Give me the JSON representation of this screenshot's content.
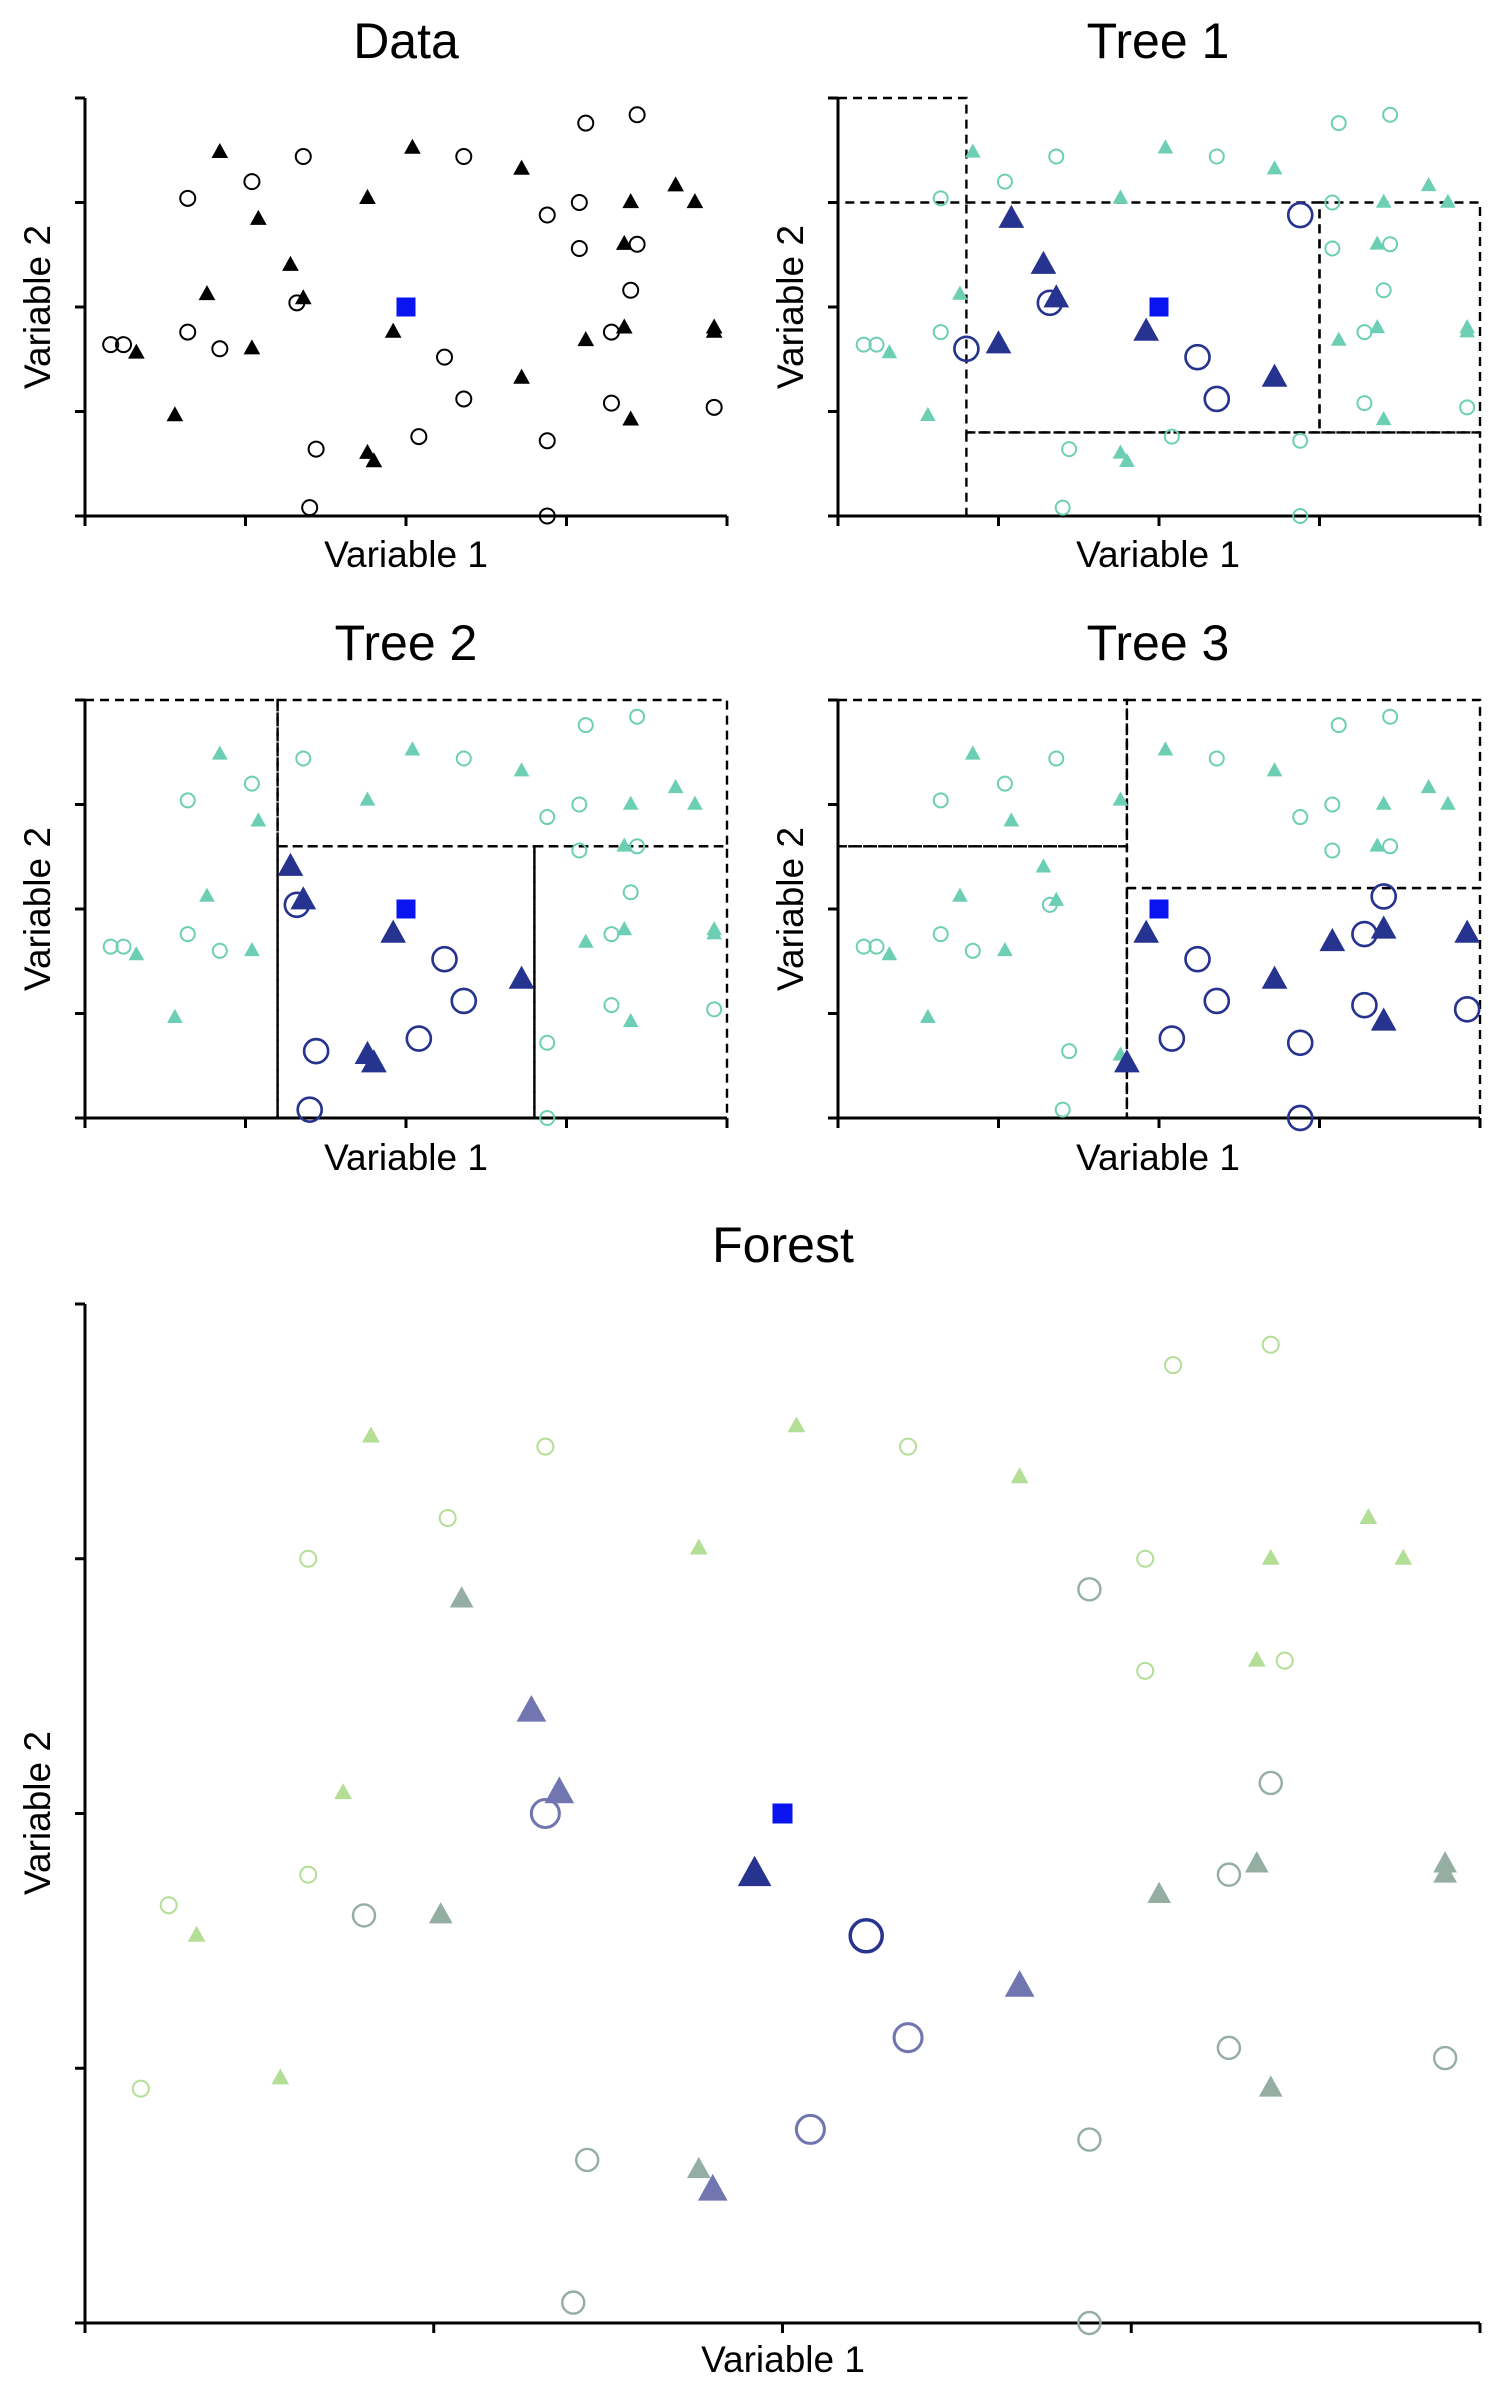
{
  "colors": {
    "query": "#0a14f0",
    "data_point": "#000000",
    "tree_background": "#6ccfb4",
    "neighbor": "#26338f",
    "forest_far": "#b2de96",
    "forest_mid": "#94aea4",
    "forest_near": "#7276b0",
    "forest_nearest": "#26338f"
  },
  "chart_data": [
    {
      "id": "data",
      "type": "scatter",
      "title": "Data",
      "xlabel": "Variable 1",
      "ylabel": "Variable 2",
      "xlim": [
        0,
        1
      ],
      "ylim": [
        0,
        1
      ],
      "x_ticks": [
        0,
        0.25,
        0.5,
        0.75,
        1
      ],
      "y_ticks": [
        0,
        0.25,
        0.5,
        0.75,
        1
      ],
      "query": {
        "x": 0.5,
        "y": 0.5,
        "shape": "square"
      },
      "points": [
        {
          "x": 0.04,
          "y": 0.41,
          "shape": "circle"
        },
        {
          "x": 0.06,
          "y": 0.41,
          "shape": "circle"
        },
        {
          "x": 0.08,
          "y": 0.39,
          "shape": "triangle"
        },
        {
          "x": 0.14,
          "y": 0.24,
          "shape": "triangle"
        },
        {
          "x": 0.16,
          "y": 0.44,
          "shape": "circle"
        },
        {
          "x": 0.16,
          "y": 0.76,
          "shape": "circle"
        },
        {
          "x": 0.19,
          "y": 0.53,
          "shape": "triangle"
        },
        {
          "x": 0.21,
          "y": 0.87,
          "shape": "triangle"
        },
        {
          "x": 0.21,
          "y": 0.4,
          "shape": "circle"
        },
        {
          "x": 0.26,
          "y": 0.4,
          "shape": "triangle"
        },
        {
          "x": 0.26,
          "y": 0.8,
          "shape": "circle"
        },
        {
          "x": 0.27,
          "y": 0.71,
          "shape": "triangle"
        },
        {
          "x": 0.32,
          "y": 0.6,
          "shape": "triangle"
        },
        {
          "x": 0.33,
          "y": 0.51,
          "shape": "circle"
        },
        {
          "x": 0.34,
          "y": 0.52,
          "shape": "triangle"
        },
        {
          "x": 0.34,
          "y": 0.86,
          "shape": "circle"
        },
        {
          "x": 0.35,
          "y": 0.02,
          "shape": "circle"
        },
        {
          "x": 0.36,
          "y": 0.16,
          "shape": "circle"
        },
        {
          "x": 0.44,
          "y": 0.15,
          "shape": "triangle"
        },
        {
          "x": 0.44,
          "y": 0.76,
          "shape": "triangle"
        },
        {
          "x": 0.45,
          "y": 0.13,
          "shape": "triangle"
        },
        {
          "x": 0.48,
          "y": 0.44,
          "shape": "triangle"
        },
        {
          "x": 0.51,
          "y": 0.88,
          "shape": "triangle"
        },
        {
          "x": 0.52,
          "y": 0.19,
          "shape": "circle"
        },
        {
          "x": 0.56,
          "y": 0.38,
          "shape": "circle"
        },
        {
          "x": 0.59,
          "y": 0.28,
          "shape": "circle"
        },
        {
          "x": 0.59,
          "y": 0.86,
          "shape": "circle"
        },
        {
          "x": 0.68,
          "y": 0.33,
          "shape": "triangle"
        },
        {
          "x": 0.68,
          "y": 0.83,
          "shape": "triangle"
        },
        {
          "x": 0.72,
          "y": 0.72,
          "shape": "circle"
        },
        {
          "x": 0.72,
          "y": 0.18,
          "shape": "circle"
        },
        {
          "x": 0.72,
          "y": 0.0,
          "shape": "circle"
        },
        {
          "x": 0.78,
          "y": 0.42,
          "shape": "triangle"
        },
        {
          "x": 0.78,
          "y": 0.94,
          "shape": "circle"
        },
        {
          "x": 0.77,
          "y": 0.75,
          "shape": "circle"
        },
        {
          "x": 0.77,
          "y": 0.64,
          "shape": "circle"
        },
        {
          "x": 0.82,
          "y": 0.27,
          "shape": "circle"
        },
        {
          "x": 0.82,
          "y": 0.44,
          "shape": "circle"
        },
        {
          "x": 0.84,
          "y": 0.45,
          "shape": "triangle"
        },
        {
          "x": 0.84,
          "y": 0.65,
          "shape": "triangle"
        },
        {
          "x": 0.85,
          "y": 0.23,
          "shape": "triangle"
        },
        {
          "x": 0.85,
          "y": 0.75,
          "shape": "triangle"
        },
        {
          "x": 0.85,
          "y": 0.54,
          "shape": "circle"
        },
        {
          "x": 0.86,
          "y": 0.65,
          "shape": "circle"
        },
        {
          "x": 0.86,
          "y": 0.96,
          "shape": "circle"
        },
        {
          "x": 0.92,
          "y": 0.79,
          "shape": "triangle"
        },
        {
          "x": 0.95,
          "y": 0.75,
          "shape": "triangle"
        },
        {
          "x": 0.98,
          "y": 0.45,
          "shape": "triangle"
        },
        {
          "x": 0.98,
          "y": 0.44,
          "shape": "triangle"
        },
        {
          "x": 0.98,
          "y": 0.26,
          "shape": "circle"
        }
      ]
    },
    {
      "id": "tree1",
      "type": "scatter",
      "title": "Tree 1",
      "xlabel": "Variable 1",
      "ylabel": "Variable 2",
      "xlim": [
        0,
        1
      ],
      "ylim": [
        0,
        1
      ],
      "x_ticks": [
        0,
        0.25,
        0.5,
        0.75,
        1
      ],
      "y_ticks": [
        0,
        0.25,
        0.5,
        0.75,
        1
      ],
      "query": {
        "x": 0.5,
        "y": 0.5,
        "shape": "square"
      },
      "partitions": [
        [
          0,
          0.75,
          0.2,
          1
        ],
        [
          0.2,
          0.2,
          0.75,
          0.75
        ],
        [
          0.75,
          0.2,
          1,
          0.75
        ],
        [
          0.2,
          0,
          1,
          0.2
        ]
      ],
      "highlight_region": [
        0.2,
        0.2,
        0.75,
        0.75
      ],
      "neighbors": [
        {
          "x": 0.2,
          "y": 0.4,
          "shape": "circle"
        },
        {
          "x": 0.25,
          "y": 0.41,
          "shape": "triangle"
        },
        {
          "x": 0.27,
          "y": 0.71,
          "shape": "triangle"
        },
        {
          "x": 0.32,
          "y": 0.6,
          "shape": "triangle"
        },
        {
          "x": 0.33,
          "y": 0.51,
          "shape": "circle"
        },
        {
          "x": 0.34,
          "y": 0.52,
          "shape": "triangle"
        },
        {
          "x": 0.48,
          "y": 0.44,
          "shape": "triangle"
        },
        {
          "x": 0.56,
          "y": 0.38,
          "shape": "circle"
        },
        {
          "x": 0.59,
          "y": 0.28,
          "shape": "circle"
        },
        {
          "x": 0.68,
          "y": 0.33,
          "shape": "triangle"
        },
        {
          "x": 0.72,
          "y": 0.72,
          "shape": "circle"
        }
      ]
    },
    {
      "id": "tree2",
      "type": "scatter",
      "title": "Tree 2",
      "xlabel": "Variable 1",
      "ylabel": "Variable 2",
      "xlim": [
        0,
        1
      ],
      "ylim": [
        0,
        1
      ],
      "x_ticks": [
        0,
        0.25,
        0.5,
        0.75,
        1
      ],
      "y_ticks": [
        0,
        0.25,
        0.5,
        0.75,
        1
      ],
      "query": {
        "x": 0.5,
        "y": 0.5,
        "shape": "square"
      },
      "partitions": [
        [
          0,
          0,
          0.3,
          1
        ],
        [
          0.3,
          0.65,
          1,
          1
        ],
        [
          0.3,
          0,
          0.7,
          0.65
        ],
        [
          0.7,
          0,
          1,
          0.65
        ]
      ],
      "highlight_region": [
        0.3,
        0,
        0.7,
        0.65
      ],
      "neighbors": [
        {
          "x": 0.32,
          "y": 0.6,
          "shape": "triangle"
        },
        {
          "x": 0.33,
          "y": 0.51,
          "shape": "circle"
        },
        {
          "x": 0.34,
          "y": 0.52,
          "shape": "triangle"
        },
        {
          "x": 0.35,
          "y": 0.02,
          "shape": "circle"
        },
        {
          "x": 0.36,
          "y": 0.16,
          "shape": "circle"
        },
        {
          "x": 0.44,
          "y": 0.15,
          "shape": "triangle"
        },
        {
          "x": 0.45,
          "y": 0.13,
          "shape": "triangle"
        },
        {
          "x": 0.48,
          "y": 0.44,
          "shape": "triangle"
        },
        {
          "x": 0.52,
          "y": 0.19,
          "shape": "circle"
        },
        {
          "x": 0.56,
          "y": 0.38,
          "shape": "circle"
        },
        {
          "x": 0.59,
          "y": 0.28,
          "shape": "circle"
        },
        {
          "x": 0.68,
          "y": 0.33,
          "shape": "triangle"
        }
      ]
    },
    {
      "id": "tree3",
      "type": "scatter",
      "title": "Tree 3",
      "xlabel": "Variable 1",
      "ylabel": "Variable 2",
      "xlim": [
        0,
        1
      ],
      "ylim": [
        0,
        1
      ],
      "x_ticks": [
        0,
        0.25,
        0.5,
        0.75,
        1
      ],
      "y_ticks": [
        0,
        0.25,
        0.5,
        0.75,
        1
      ],
      "query": {
        "x": 0.5,
        "y": 0.5,
        "shape": "square"
      },
      "partitions": [
        [
          0,
          0.65,
          0.45,
          1
        ],
        [
          0,
          0,
          0.45,
          0.65
        ],
        [
          0.45,
          0.55,
          1,
          1
        ],
        [
          0.45,
          0,
          1,
          0.55
        ]
      ],
      "highlight_region": [
        0.45,
        0,
        1,
        0.55
      ],
      "neighbors": [
        {
          "x": 0.45,
          "y": 0.13,
          "shape": "triangle"
        },
        {
          "x": 0.48,
          "y": 0.44,
          "shape": "triangle"
        },
        {
          "x": 0.52,
          "y": 0.19,
          "shape": "circle"
        },
        {
          "x": 0.56,
          "y": 0.38,
          "shape": "circle"
        },
        {
          "x": 0.59,
          "y": 0.28,
          "shape": "circle"
        },
        {
          "x": 0.68,
          "y": 0.33,
          "shape": "triangle"
        },
        {
          "x": 0.72,
          "y": 0.18,
          "shape": "circle"
        },
        {
          "x": 0.72,
          "y": 0.0,
          "shape": "circle"
        },
        {
          "x": 0.77,
          "y": 0.42,
          "shape": "triangle"
        },
        {
          "x": 0.82,
          "y": 0.44,
          "shape": "circle"
        },
        {
          "x": 0.82,
          "y": 0.27,
          "shape": "circle"
        },
        {
          "x": 0.85,
          "y": 0.53,
          "shape": "circle"
        },
        {
          "x": 0.85,
          "y": 0.45,
          "shape": "triangle"
        },
        {
          "x": 0.85,
          "y": 0.23,
          "shape": "triangle"
        },
        {
          "x": 0.98,
          "y": 0.44,
          "shape": "triangle"
        },
        {
          "x": 0.98,
          "y": 0.26,
          "shape": "circle"
        }
      ]
    },
    {
      "id": "forest",
      "type": "scatter",
      "title": "Forest",
      "xlabel": "Variable 1",
      "ylabel": "Variable 2",
      "xlim": [
        0,
        1
      ],
      "ylim": [
        0,
        1
      ],
      "x_ticks": [
        0,
        0.25,
        0.5,
        0.75,
        1
      ],
      "y_ticks": [
        0,
        0.25,
        0.5,
        0.75,
        1
      ],
      "query": {
        "x": 0.5,
        "y": 0.5,
        "shape": "square"
      },
      "points": [
        {
          "x": 0.04,
          "y": 0.23,
          "shape": "circle",
          "weight": 0
        },
        {
          "x": 0.06,
          "y": 0.41,
          "shape": "circle",
          "weight": 0
        },
        {
          "x": 0.08,
          "y": 0.38,
          "shape": "triangle",
          "weight": 0
        },
        {
          "x": 0.14,
          "y": 0.24,
          "shape": "triangle",
          "weight": 0
        },
        {
          "x": 0.16,
          "y": 0.44,
          "shape": "circle",
          "weight": 0
        },
        {
          "x": 0.16,
          "y": 0.75,
          "shape": "circle",
          "weight": 0
        },
        {
          "x": 0.185,
          "y": 0.52,
          "shape": "triangle",
          "weight": 0
        },
        {
          "x": 0.205,
          "y": 0.87,
          "shape": "triangle",
          "weight": 0
        },
        {
          "x": 0.2,
          "y": 0.4,
          "shape": "circle",
          "weight": 1
        },
        {
          "x": 0.255,
          "y": 0.4,
          "shape": "triangle",
          "weight": 1
        },
        {
          "x": 0.26,
          "y": 0.79,
          "shape": "circle",
          "weight": 0
        },
        {
          "x": 0.27,
          "y": 0.71,
          "shape": "triangle",
          "weight": 1
        },
        {
          "x": 0.32,
          "y": 0.6,
          "shape": "triangle",
          "weight": 2
        },
        {
          "x": 0.33,
          "y": 0.5,
          "shape": "circle",
          "weight": 2
        },
        {
          "x": 0.34,
          "y": 0.52,
          "shape": "triangle",
          "weight": 2
        },
        {
          "x": 0.33,
          "y": 0.86,
          "shape": "circle",
          "weight": 0
        },
        {
          "x": 0.35,
          "y": 0.02,
          "shape": "circle",
          "weight": 1
        },
        {
          "x": 0.36,
          "y": 0.16,
          "shape": "circle",
          "weight": 1
        },
        {
          "x": 0.44,
          "y": 0.15,
          "shape": "triangle",
          "weight": 1
        },
        {
          "x": 0.44,
          "y": 0.76,
          "shape": "triangle",
          "weight": 0
        },
        {
          "x": 0.45,
          "y": 0.13,
          "shape": "triangle",
          "weight": 2
        },
        {
          "x": 0.48,
          "y": 0.44,
          "shape": "triangle",
          "weight": 3
        },
        {
          "x": 0.51,
          "y": 0.88,
          "shape": "triangle",
          "weight": 0
        },
        {
          "x": 0.52,
          "y": 0.19,
          "shape": "circle",
          "weight": 2
        },
        {
          "x": 0.56,
          "y": 0.38,
          "shape": "circle",
          "weight": 3
        },
        {
          "x": 0.59,
          "y": 0.28,
          "shape": "circle",
          "weight": 2
        },
        {
          "x": 0.59,
          "y": 0.86,
          "shape": "circle",
          "weight": 0
        },
        {
          "x": 0.67,
          "y": 0.33,
          "shape": "triangle",
          "weight": 2
        },
        {
          "x": 0.67,
          "y": 0.83,
          "shape": "triangle",
          "weight": 0
        },
        {
          "x": 0.72,
          "y": 0.72,
          "shape": "circle",
          "weight": 1
        },
        {
          "x": 0.72,
          "y": 0.18,
          "shape": "circle",
          "weight": 1
        },
        {
          "x": 0.72,
          "y": 0.0,
          "shape": "circle",
          "weight": 1
        },
        {
          "x": 0.77,
          "y": 0.42,
          "shape": "triangle",
          "weight": 1
        },
        {
          "x": 0.78,
          "y": 0.94,
          "shape": "circle",
          "weight": 0
        },
        {
          "x": 0.76,
          "y": 0.75,
          "shape": "circle",
          "weight": 0
        },
        {
          "x": 0.76,
          "y": 0.64,
          "shape": "circle",
          "weight": 0
        },
        {
          "x": 0.82,
          "y": 0.27,
          "shape": "circle",
          "weight": 1
        },
        {
          "x": 0.82,
          "y": 0.44,
          "shape": "circle",
          "weight": 1
        },
        {
          "x": 0.84,
          "y": 0.45,
          "shape": "triangle",
          "weight": 1
        },
        {
          "x": 0.84,
          "y": 0.65,
          "shape": "triangle",
          "weight": 0
        },
        {
          "x": 0.85,
          "y": 0.23,
          "shape": "triangle",
          "weight": 1
        },
        {
          "x": 0.85,
          "y": 0.75,
          "shape": "triangle",
          "weight": 0
        },
        {
          "x": 0.85,
          "y": 0.53,
          "shape": "circle",
          "weight": 1
        },
        {
          "x": 0.86,
          "y": 0.65,
          "shape": "circle",
          "weight": 0
        },
        {
          "x": 0.85,
          "y": 0.96,
          "shape": "circle",
          "weight": 0
        },
        {
          "x": 0.92,
          "y": 0.79,
          "shape": "triangle",
          "weight": 0
        },
        {
          "x": 0.945,
          "y": 0.75,
          "shape": "triangle",
          "weight": 0
        },
        {
          "x": 0.975,
          "y": 0.45,
          "shape": "triangle",
          "weight": 1
        },
        {
          "x": 0.975,
          "y": 0.44,
          "shape": "triangle",
          "weight": 1
        },
        {
          "x": 0.975,
          "y": 0.26,
          "shape": "circle",
          "weight": 1
        }
      ]
    }
  ]
}
